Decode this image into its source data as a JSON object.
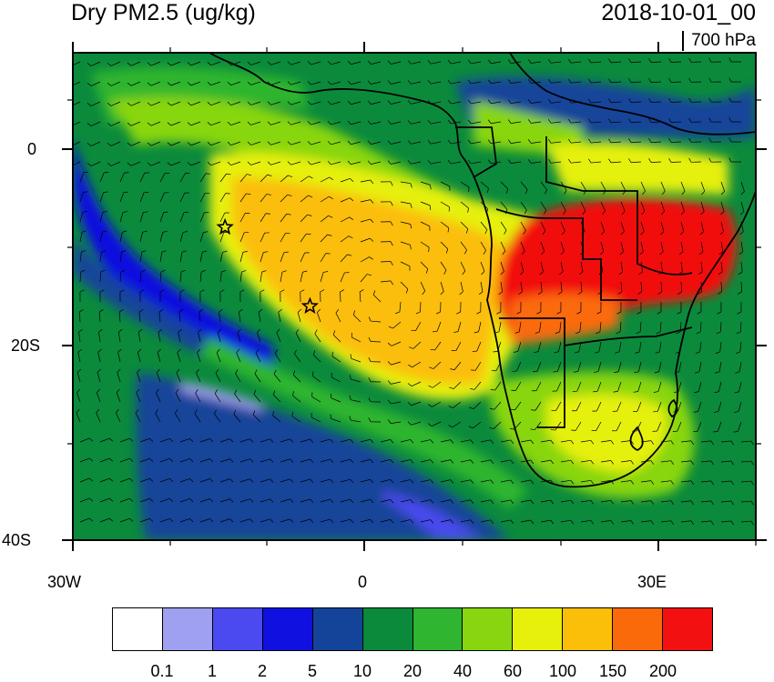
{
  "title": "Dry PM2.5 (ug/kg)",
  "datetime": "2018-10-01_00",
  "level": "700 hPa",
  "map": {
    "lat_labels": [
      "0",
      "20S",
      "40S"
    ],
    "lon_labels": [
      "30W",
      "0",
      "30E"
    ],
    "lat_range": [
      -40,
      10
    ],
    "lon_range": [
      -30,
      40
    ]
  },
  "markers": [
    {
      "name": "star",
      "lon": -14.4,
      "lat": -7.9
    },
    {
      "name": "star",
      "lon": -5.7,
      "lat": -16.0
    }
  ],
  "colorbar": {
    "levels": [
      "0.1",
      "1",
      "2",
      "5",
      "10",
      "20",
      "40",
      "60",
      "100",
      "150",
      "200"
    ],
    "colors": [
      "#ffffff",
      "#a0a0f0",
      "#4a4af0",
      "#1010e0",
      "#13449a",
      "#0b8a3c",
      "#2fb52f",
      "#88d610",
      "#e6f00b",
      "#fbbe09",
      "#fb6a0a",
      "#f21010"
    ]
  }
}
